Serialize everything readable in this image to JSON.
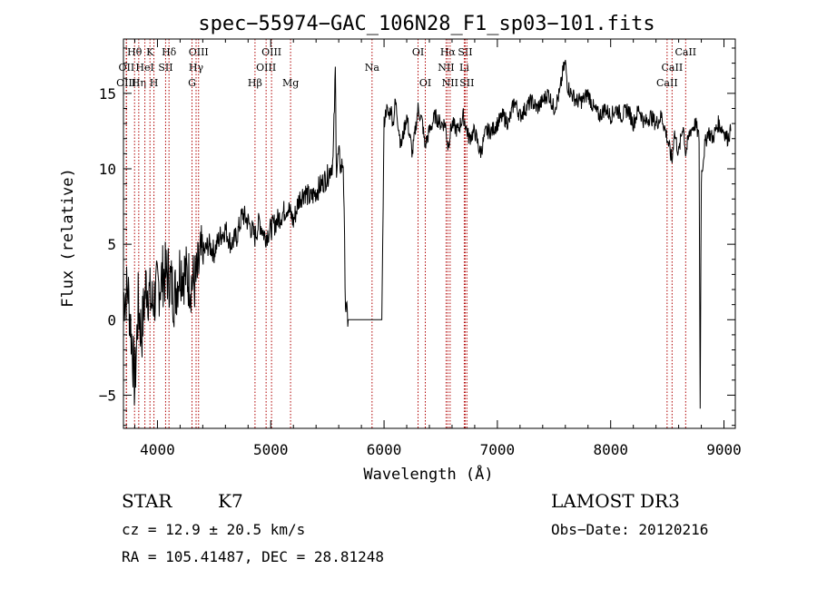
{
  "chart_data": {
    "type": "line",
    "title": "spec−55974−GAC_106N28_F1_sp03−101.fits",
    "xlabel": "Wavelength (Å)",
    "ylabel": "Flux (relative)",
    "xlim": [
      3700,
      9100
    ],
    "ylim": [
      -7.2,
      18.6
    ],
    "xticks": [
      4000,
      5000,
      6000,
      7000,
      8000,
      9000
    ],
    "yticks": [
      -5,
      0,
      5,
      10,
      15
    ],
    "series": [
      {
        "name": "flux",
        "x": [
          3700,
          3740,
          3780,
          3800,
          3830,
          3860,
          3900,
          3950,
          4000,
          4050,
          4100,
          4150,
          4200,
          4250,
          4300,
          4340,
          4380,
          4450,
          4500,
          4550,
          4600,
          4650,
          4700,
          4750,
          4800,
          4860,
          4900,
          4950,
          5000,
          5050,
          5100,
          5150,
          5200,
          5250,
          5300,
          5350,
          5400,
          5450,
          5500,
          5550,
          5570,
          5580,
          5600,
          5620,
          5640,
          5660,
          5680,
          5720,
          5800,
          5900,
          5980,
          6000,
          6020,
          6040,
          6060,
          6080,
          6100,
          6150,
          6200,
          6250,
          6300,
          6340,
          6360,
          6400,
          6450,
          6500,
          6540,
          6563,
          6600,
          6650,
          6700,
          6750,
          6800,
          6850,
          6900,
          6950,
          7000,
          7050,
          7100,
          7150,
          7200,
          7250,
          7300,
          7350,
          7400,
          7450,
          7500,
          7550,
          7580,
          7600,
          7620,
          7650,
          7700,
          7750,
          7800,
          7850,
          7900,
          7950,
          8000,
          8050,
          8100,
          8150,
          8200,
          8250,
          8300,
          8350,
          8400,
          8450,
          8500,
          8542,
          8560,
          8600,
          8640,
          8662,
          8700,
          8750,
          8780,
          8790,
          8800,
          8830,
          8860,
          8900,
          8950,
          9000,
          9030,
          9060
        ],
        "values": [
          1.5,
          2.0,
          -2.0,
          -4.5,
          1.0,
          -1.0,
          2.5,
          1.0,
          2.0,
          3.0,
          3.0,
          1.5,
          3.5,
          3.0,
          2.5,
          2.5,
          4.0,
          5.0,
          4.5,
          5.5,
          6.0,
          5.0,
          5.5,
          7.0,
          6.5,
          5.5,
          6.5,
          5.5,
          6.0,
          6.5,
          7.0,
          7.5,
          6.5,
          8.0,
          8.5,
          8.0,
          8.5,
          9.0,
          9.5,
          10.5,
          16.5,
          10.0,
          11.0,
          10.0,
          10.5,
          1.0,
          0.0,
          0.0,
          0.0,
          0.0,
          0.0,
          13.0,
          14.0,
          13.5,
          14.0,
          13.0,
          14.5,
          11.5,
          13.5,
          11.0,
          14.0,
          13.0,
          11.5,
          12.5,
          13.5,
          13.0,
          13.0,
          11.5,
          13.0,
          12.5,
          13.5,
          12.0,
          12.5,
          11.0,
          12.5,
          12.5,
          13.0,
          13.5,
          13.0,
          14.5,
          13.5,
          14.0,
          14.5,
          14.0,
          14.5,
          15.0,
          14.0,
          15.0,
          16.5,
          17.0,
          15.5,
          15.0,
          14.5,
          14.5,
          15.0,
          14.0,
          13.5,
          14.0,
          13.5,
          14.0,
          13.5,
          14.0,
          13.0,
          14.0,
          13.0,
          13.5,
          13.0,
          13.5,
          12.0,
          10.5,
          12.5,
          11.0,
          13.0,
          11.0,
          12.5,
          13.0,
          12.0,
          -6.0,
          9.5,
          11.5,
          12.5,
          12.0,
          13.0,
          12.5,
          12.0,
          12.5
        ]
      }
    ],
    "reference_lines": [
      {
        "label": "Hθ",
        "wavelength": 3798
      },
      {
        "label": "OII",
        "wavelength": 3727
      },
      {
        "label": "OIII",
        "wavelength": 3725
      },
      {
        "label": "Hη",
        "wavelength": 3835
      },
      {
        "label": "HeI",
        "wavelength": 3889
      },
      {
        "label": "K",
        "wavelength": 3934
      },
      {
        "label": "SII",
        "wavelength": 4072
      },
      {
        "label": "H",
        "wavelength": 3969
      },
      {
        "label": "Hδ",
        "wavelength": 4102
      },
      {
        "label": "OIII",
        "wavelength": 4363
      },
      {
        "label": "Hγ",
        "wavelength": 4341
      },
      {
        "label": "G",
        "wavelength": 4305
      },
      {
        "label": "Hβ",
        "wavelength": 4861
      },
      {
        "label": "OIII",
        "wavelength": 5007
      },
      {
        "label": "OIII",
        "wavelength": 4959
      },
      {
        "label": "Mg",
        "wavelength": 5175
      },
      {
        "label": "Na",
        "wavelength": 5894
      },
      {
        "label": "OI",
        "wavelength": 6300
      },
      {
        "label": "OI",
        "wavelength": 6364
      },
      {
        "label": "Hα",
        "wavelength": 6563
      },
      {
        "label": "NII",
        "wavelength": 6548
      },
      {
        "label": "NII",
        "wavelength": 6583
      },
      {
        "label": "SII",
        "wavelength": 6716
      },
      {
        "label": "Li",
        "wavelength": 6708
      },
      {
        "label": "SII",
        "wavelength": 6731
      },
      {
        "label": "CaII",
        "wavelength": 8662
      },
      {
        "label": "CaII",
        "wavelength": 8542
      },
      {
        "label": "CaII",
        "wavelength": 8498
      }
    ]
  },
  "info": {
    "object_class": "STAR",
    "subclass": "K7",
    "survey": "LAMOST DR3",
    "cz": "cz = 12.9 ± 20.5 km/s",
    "obs_date": "Obs−Date: 20120216",
    "coords": "RA = 105.41487, DEC =  28.81248"
  },
  "colors": {
    "spectrum": "#000000",
    "reference_line": "#b00000"
  }
}
